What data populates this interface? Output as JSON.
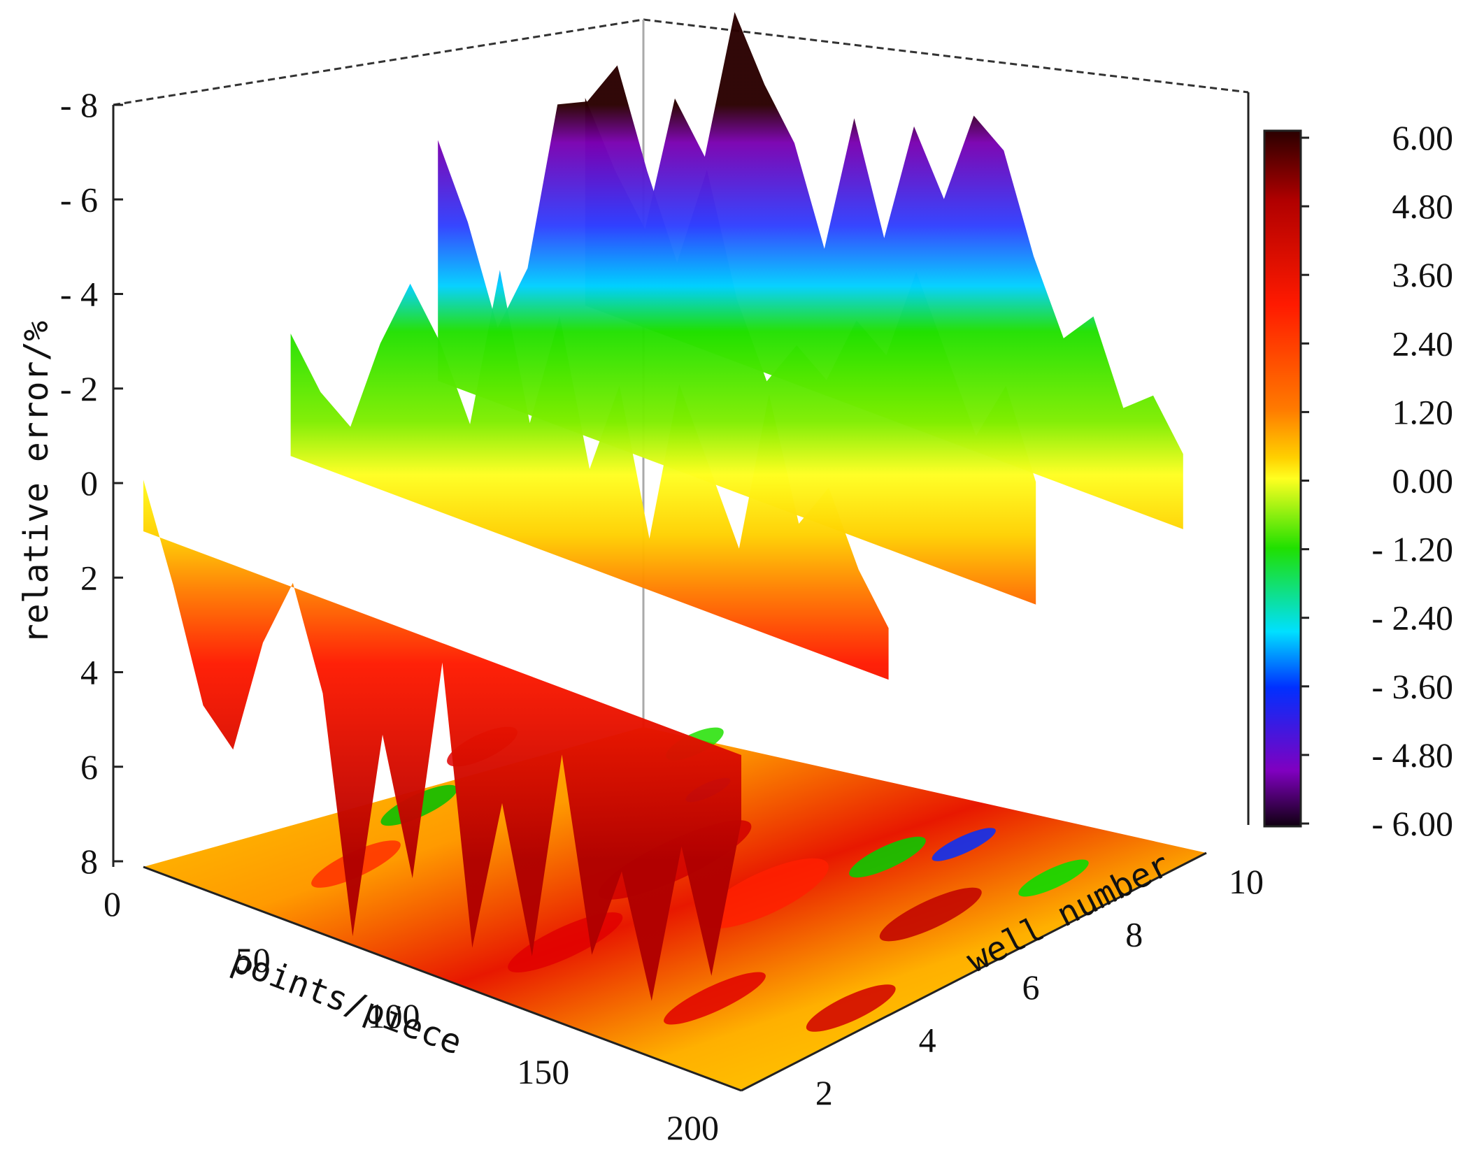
{
  "chart_data": {
    "type": "surface3d",
    "title": "",
    "z_axis": {
      "label": "relative error/%",
      "ticks": [
        "- 8",
        "- 6",
        "- 4",
        "- 2",
        "0",
        "2",
        "4",
        "6",
        "8"
      ],
      "range": [
        -8,
        8
      ],
      "reversed": true
    },
    "x_axis": {
      "label": "points/piece",
      "ticks": [
        "0",
        "50",
        "100",
        "150",
        "200"
      ],
      "range": [
        0,
        200
      ]
    },
    "y_axis": {
      "label": "well number",
      "ticks": [
        "2",
        "4",
        "6",
        "8",
        "10"
      ],
      "range": [
        1,
        10
      ]
    },
    "colorbar": {
      "labels": [
        "6.00",
        "4.80",
        "3.60",
        "2.40",
        "1.20",
        "0.00",
        "- 1.20",
        "- 2.40",
        "- 3.60",
        "- 4.80",
        "- 6.00"
      ],
      "range": [
        -6,
        6
      ],
      "colors": [
        "#2a0000",
        "#b00000",
        "#ff1a00",
        "#ff7a00",
        "#ffd000",
        "#ffff20",
        "#20e000",
        "#00e0ff",
        "#0030ff",
        "#8000c0",
        "#100010"
      ]
    },
    "series": [
      {
        "well_profiles_x": [
          0,
          10,
          20,
          30,
          40,
          50,
          60,
          70,
          80,
          90,
          100,
          110,
          120,
          130,
          140,
          150,
          160,
          170,
          180,
          190,
          200
        ],
        "profiles": [
          {
            "well": 1,
            "values": [
              -0.5,
              1.5,
              3.8,
              4.5,
              2.0,
              0.5,
              2.6,
              7.5,
              3.0,
              5.8,
              1.0,
              6.8,
              3.5,
              6.5,
              2.0,
              6.0,
              4.0,
              6.5,
              3.0,
              5.5,
              2.0
            ]
          },
          {
            "well": 4,
            "values": [
              -2.0,
              -1.0,
              -0.5,
              -2.5,
              -4.0,
              -3.0,
              -1.5,
              -5.0,
              -2.0,
              -4.5,
              -1.5,
              -3.5,
              -0.5,
              -4.0,
              -2.5,
              -1.0,
              -4.5,
              -2.0,
              -3.0,
              -1.5,
              -0.5
            ]
          },
          {
            "well": 7,
            "values": [
              -4.5,
              -3.0,
              -1.0,
              -2.5,
              -6.2,
              -6.5,
              -7.5,
              -5.5,
              -3.8,
              -6.0,
              -3.5,
              -2.0,
              -3.0,
              -2.5,
              -4.0,
              -3.5,
              -5.5,
              -4.0,
              -2.5,
              -3.8,
              -2.0
            ]
          },
          {
            "well": 10,
            "values": [
              -3.8,
              -2.5,
              -1.5,
              -4.5,
              -3.5,
              -6.8,
              -5.5,
              -4.5,
              -2.5,
              -5.5,
              -3.2,
              -5.8,
              -4.5,
              -6.5,
              -6.0,
              -4.0,
              -2.5,
              -3.2,
              -1.5,
              -2.0,
              -1.0
            ]
          }
        ]
      }
    ]
  }
}
